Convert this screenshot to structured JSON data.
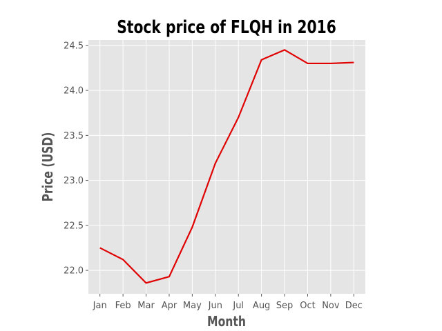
{
  "chart_data": {
    "type": "line",
    "title": "Stock price of FLQH in 2016",
    "xlabel": "Month",
    "ylabel": "Price (USD)",
    "categories": [
      "Jan",
      "Feb",
      "Mar",
      "Apr",
      "May",
      "Jun",
      "Jul",
      "Aug",
      "Sep",
      "Oct",
      "Nov",
      "Dec"
    ],
    "series": [
      {
        "values": [
          22.25,
          22.12,
          21.86,
          21.93,
          22.48,
          23.19,
          23.7,
          24.34,
          24.45,
          24.3,
          24.3,
          24.31
        ],
        "color": "#e00000"
      }
    ],
    "ylim": [
      21.74,
      24.56
    ],
    "yticks": [
      "22.0",
      "22.5",
      "23.0",
      "23.5",
      "24.0",
      "24.5"
    ],
    "grid": true,
    "background_color": "#e5e5e5",
    "grid_color": "#ffffff"
  }
}
